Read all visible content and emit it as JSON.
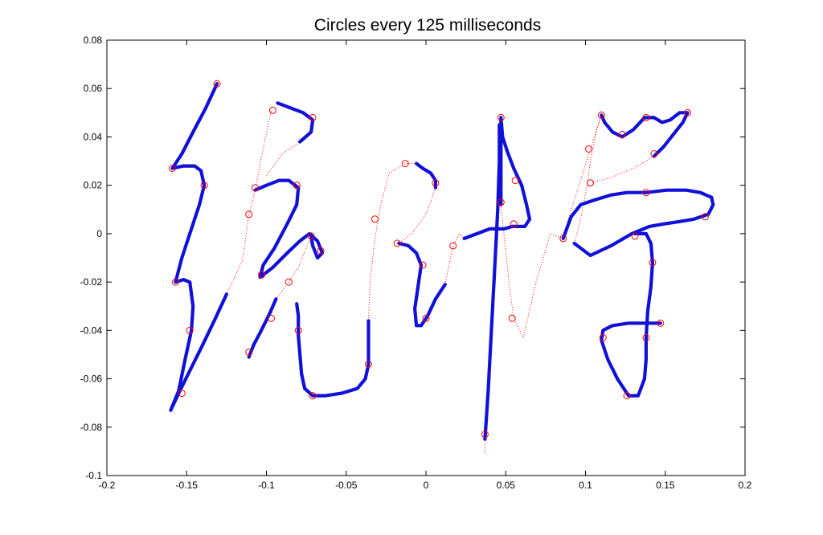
{
  "chart_data": {
    "type": "scatter",
    "title": "Circles every 125 milliseconds",
    "xlabel": "",
    "ylabel": "",
    "xlim": [
      -0.2,
      0.2
    ],
    "ylim": [
      -0.1,
      0.08
    ],
    "x_ticks": [
      -0.2,
      -0.15,
      -0.1,
      -0.05,
      0,
      0.05,
      0.1,
      0.15,
      0.2
    ],
    "x_tick_labels": [
      "-0.2",
      "-0.15",
      "-0.1",
      "-0.05",
      "0",
      "0.05",
      "0.1",
      "0.15",
      "0.2"
    ],
    "y_ticks": [
      0.08,
      0.06,
      0.04,
      0.02,
      0,
      -0.02,
      -0.04,
      -0.06,
      -0.08,
      -0.1
    ],
    "y_tick_labels": [
      "0.08",
      "0.06",
      "0.04",
      "0.02",
      "0",
      "-0.02",
      "-0.04",
      "-0.06",
      "-0.08",
      "-0.1"
    ],
    "grid": false,
    "colors": {
      "pen_down": "#1010d8",
      "pen_up": "#ff0000",
      "circles": "#ff0000"
    },
    "strokes": [
      [
        [
          -0.131,
          0.062
        ],
        [
          -0.138,
          0.052
        ],
        [
          -0.146,
          0.042
        ],
        [
          -0.153,
          0.033
        ],
        [
          -0.159,
          0.027
        ],
        [
          -0.152,
          0.028
        ],
        [
          -0.145,
          0.028
        ],
        [
          -0.141,
          0.026
        ],
        [
          -0.139,
          0.02
        ],
        [
          -0.142,
          0.012
        ],
        [
          -0.148,
          0.0
        ],
        [
          -0.153,
          -0.01
        ],
        [
          -0.157,
          -0.02
        ],
        [
          -0.152,
          -0.019
        ],
        [
          -0.148,
          -0.02
        ],
        [
          -0.146,
          -0.03
        ],
        [
          -0.147,
          -0.04
        ],
        [
          -0.151,
          -0.052
        ],
        [
          -0.155,
          -0.065
        ],
        [
          -0.16,
          -0.073
        ],
        [
          -0.155,
          -0.066
        ],
        [
          -0.149,
          -0.058
        ],
        [
          -0.14,
          -0.046
        ],
        [
          -0.132,
          -0.035
        ],
        [
          -0.125,
          -0.025
        ]
      ],
      [
        [
          -0.093,
          0.054
        ],
        [
          -0.085,
          0.052
        ],
        [
          -0.077,
          0.05
        ],
        [
          -0.071,
          0.047
        ],
        [
          -0.072,
          0.042
        ],
        [
          -0.079,
          0.038
        ]
      ],
      [
        [
          -0.107,
          0.018
        ],
        [
          -0.1,
          0.02
        ],
        [
          -0.092,
          0.022
        ],
        [
          -0.086,
          0.022
        ],
        [
          -0.08,
          0.019
        ],
        [
          -0.081,
          0.012
        ],
        [
          -0.087,
          0.004
        ],
        [
          -0.095,
          -0.006
        ],
        [
          -0.102,
          -0.013
        ],
        [
          -0.104,
          -0.018
        ],
        [
          -0.096,
          -0.014
        ],
        [
          -0.087,
          -0.008
        ],
        [
          -0.079,
          -0.003
        ],
        [
          -0.073,
          0.0
        ],
        [
          -0.068,
          -0.003
        ],
        [
          -0.065,
          -0.008
        ],
        [
          -0.068,
          -0.01
        ],
        [
          -0.071,
          -0.005
        ],
        [
          -0.072,
          -0.001
        ]
      ],
      [
        [
          -0.094,
          -0.027
        ],
        [
          -0.098,
          -0.033
        ],
        [
          -0.104,
          -0.041
        ],
        [
          -0.108,
          -0.046
        ],
        [
          -0.111,
          -0.051
        ]
      ],
      [
        [
          -0.081,
          -0.029
        ],
        [
          -0.08,
          -0.034
        ],
        [
          -0.08,
          -0.042
        ],
        [
          -0.079,
          -0.05
        ],
        [
          -0.078,
          -0.058
        ],
        [
          -0.076,
          -0.064
        ],
        [
          -0.071,
          -0.067
        ],
        [
          -0.063,
          -0.067
        ],
        [
          -0.053,
          -0.066
        ],
        [
          -0.043,
          -0.064
        ],
        [
          -0.038,
          -0.06
        ],
        [
          -0.036,
          -0.054
        ],
        [
          -0.036,
          -0.045
        ],
        [
          -0.036,
          -0.036
        ]
      ],
      [
        [
          -0.006,
          0.029
        ],
        [
          -0.002,
          0.027
        ],
        [
          0.003,
          0.025
        ],
        [
          0.006,
          0.022
        ],
        [
          0.006,
          0.019
        ]
      ],
      [
        [
          -0.017,
          -0.004
        ],
        [
          -0.011,
          -0.005
        ],
        [
          -0.006,
          -0.008
        ],
        [
          -0.003,
          -0.013
        ],
        [
          -0.005,
          -0.022
        ],
        [
          -0.007,
          -0.031
        ],
        [
          -0.006,
          -0.038
        ],
        [
          -0.003,
          -0.038
        ],
        [
          0.001,
          -0.034
        ],
        [
          0.006,
          -0.027
        ],
        [
          0.012,
          -0.021
        ]
      ],
      [
        [
          0.024,
          -0.002
        ],
        [
          0.032,
          0.0
        ],
        [
          0.04,
          0.002
        ],
        [
          0.049,
          0.002
        ],
        [
          0.054,
          0.003
        ],
        [
          0.058,
          0.003
        ],
        [
          0.062,
          0.003
        ],
        [
          0.065,
          0.006
        ],
        [
          0.063,
          0.012
        ],
        [
          0.06,
          0.02
        ],
        [
          0.055,
          0.027
        ],
        [
          0.051,
          0.034
        ],
        [
          0.048,
          0.04
        ],
        [
          0.047,
          0.048
        ],
        [
          0.047,
          0.03
        ],
        [
          0.047,
          0.012
        ]
      ],
      [
        [
          0.046,
          0.045
        ],
        [
          0.046,
          0.03
        ],
        [
          0.045,
          0.01
        ],
        [
          0.043,
          -0.015
        ],
        [
          0.041,
          -0.04
        ],
        [
          0.039,
          -0.065
        ],
        [
          0.037,
          -0.085
        ]
      ],
      [
        [
          0.086,
          -0.002
        ],
        [
          0.091,
          0.007
        ],
        [
          0.097,
          0.012
        ],
        [
          0.106,
          0.014
        ],
        [
          0.116,
          0.016
        ],
        [
          0.126,
          0.017
        ],
        [
          0.138,
          0.017
        ],
        [
          0.151,
          0.018
        ],
        [
          0.163,
          0.018
        ],
        [
          0.172,
          0.017
        ],
        [
          0.179,
          0.015
        ],
        [
          0.18,
          0.012
        ],
        [
          0.177,
          0.008
        ],
        [
          0.168,
          0.006
        ],
        [
          0.159,
          0.005
        ],
        [
          0.149,
          0.004
        ],
        [
          0.14,
          0.003
        ],
        [
          0.129,
          0.0
        ],
        [
          0.116,
          -0.005
        ],
        [
          0.103,
          -0.009
        ],
        [
          0.093,
          -0.004
        ]
      ],
      [
        [
          0.11,
          0.049
        ],
        [
          0.112,
          0.046
        ],
        [
          0.117,
          0.042
        ],
        [
          0.123,
          0.04
        ],
        [
          0.13,
          0.043
        ],
        [
          0.137,
          0.048
        ],
        [
          0.143,
          0.048
        ],
        [
          0.148,
          0.046
        ],
        [
          0.153,
          0.047
        ],
        [
          0.159,
          0.05
        ],
        [
          0.164,
          0.05
        ],
        [
          0.161,
          0.046
        ],
        [
          0.155,
          0.041
        ],
        [
          0.149,
          0.036
        ],
        [
          0.143,
          0.032
        ]
      ],
      [
        [
          0.131,
          0.0
        ],
        [
          0.138,
          0.0
        ],
        [
          0.141,
          -0.004
        ],
        [
          0.142,
          -0.012
        ],
        [
          0.141,
          -0.022
        ],
        [
          0.139,
          -0.032
        ],
        [
          0.138,
          -0.043
        ],
        [
          0.138,
          -0.052
        ],
        [
          0.137,
          -0.06
        ],
        [
          0.133,
          -0.067
        ],
        [
          0.127,
          -0.067
        ],
        [
          0.12,
          -0.06
        ],
        [
          0.114,
          -0.052
        ],
        [
          0.11,
          -0.044
        ],
        [
          0.111,
          -0.04
        ],
        [
          0.117,
          -0.038
        ],
        [
          0.127,
          -0.037
        ],
        [
          0.137,
          -0.037
        ],
        [
          0.147,
          -0.037
        ]
      ]
    ],
    "pen_up": [
      [
        [
          -0.125,
          -0.025
        ],
        [
          -0.115,
          -0.011
        ],
        [
          -0.111,
          0.008
        ],
        [
          -0.107,
          0.018
        ]
      ],
      [
        [
          -0.107,
          0.018
        ],
        [
          -0.103,
          0.032
        ],
        [
          -0.097,
          0.051
        ]
      ],
      [
        [
          -0.1,
          0.024
        ],
        [
          -0.09,
          0.033
        ],
        [
          -0.079,
          0.038
        ]
      ],
      [
        [
          -0.072,
          -0.001
        ],
        [
          -0.08,
          -0.014
        ],
        [
          -0.086,
          -0.02
        ],
        [
          -0.094,
          -0.027
        ]
      ],
      [
        [
          -0.036,
          -0.036
        ],
        [
          -0.035,
          -0.02
        ],
        [
          -0.032,
          -0.002
        ],
        [
          -0.028,
          0.013
        ],
        [
          -0.023,
          0.025
        ],
        [
          -0.013,
          0.029
        ],
        [
          -0.006,
          0.029
        ]
      ],
      [
        [
          0.006,
          0.019
        ],
        [
          0.0,
          0.008
        ],
        [
          -0.009,
          0.0
        ],
        [
          -0.017,
          -0.004
        ]
      ],
      [
        [
          0.012,
          -0.021
        ],
        [
          0.017,
          -0.005
        ],
        [
          0.021,
          0.0
        ],
        [
          0.024,
          -0.002
        ]
      ],
      [
        [
          0.037,
          -0.085
        ],
        [
          0.037,
          -0.091
        ]
      ],
      [
        [
          0.047,
          0.012
        ],
        [
          0.052,
          -0.02
        ],
        [
          0.055,
          -0.035
        ],
        [
          0.061,
          -0.043
        ]
      ],
      [
        [
          0.061,
          -0.043
        ],
        [
          0.069,
          -0.02
        ],
        [
          0.078,
          0.0
        ],
        [
          0.086,
          -0.002
        ]
      ],
      [
        [
          0.093,
          -0.004
        ],
        [
          0.097,
          0.006
        ],
        [
          0.101,
          0.02
        ],
        [
          0.103,
          0.03
        ],
        [
          0.107,
          0.043
        ],
        [
          0.11,
          0.049
        ]
      ],
      [
        [
          0.143,
          0.032
        ],
        [
          0.13,
          0.027
        ],
        [
          0.115,
          0.023
        ],
        [
          0.103,
          0.021
        ]
      ],
      [
        [
          0.086,
          -0.002
        ],
        [
          0.091,
          0.01
        ],
        [
          0.097,
          0.022
        ],
        [
          0.103,
          0.035
        ],
        [
          0.11,
          0.049
        ]
      ]
    ],
    "circles": [
      [
        -0.131,
        0.062
      ],
      [
        -0.159,
        0.027
      ],
      [
        -0.139,
        0.02
      ],
      [
        -0.157,
        -0.02
      ],
      [
        -0.148,
        -0.04
      ],
      [
        -0.153,
        -0.066
      ],
      [
        -0.096,
        0.051
      ],
      [
        -0.071,
        0.048
      ],
      [
        -0.107,
        0.019
      ],
      [
        -0.081,
        0.02
      ],
      [
        -0.111,
        0.008
      ],
      [
        -0.072,
        -0.001
      ],
      [
        -0.066,
        -0.007
      ],
      [
        -0.103,
        -0.017
      ],
      [
        -0.086,
        -0.02
      ],
      [
        -0.097,
        -0.035
      ],
      [
        -0.08,
        -0.04
      ],
      [
        -0.111,
        -0.049
      ],
      [
        -0.071,
        -0.067
      ],
      [
        -0.036,
        -0.054
      ],
      [
        -0.013,
        0.029
      ],
      [
        0.006,
        0.021
      ],
      [
        -0.032,
        0.006
      ],
      [
        -0.018,
        -0.004
      ],
      [
        -0.002,
        -0.013
      ],
      [
        0.0,
        -0.035
      ],
      [
        0.017,
        -0.005
      ],
      [
        0.047,
        0.048
      ],
      [
        0.047,
        0.013
      ],
      [
        0.056,
        0.022
      ],
      [
        0.055,
        0.004
      ],
      [
        0.054,
        -0.035
      ],
      [
        0.037,
        -0.083
      ],
      [
        0.11,
        0.049
      ],
      [
        0.102,
        0.035
      ],
      [
        0.103,
        0.021
      ],
      [
        0.086,
        -0.002
      ],
      [
        0.123,
        0.041
      ],
      [
        0.138,
        0.048
      ],
      [
        0.164,
        0.05
      ],
      [
        0.143,
        0.033
      ],
      [
        0.138,
        0.017
      ],
      [
        0.175,
        0.007
      ],
      [
        0.131,
        -0.001
      ],
      [
        0.142,
        -0.012
      ],
      [
        0.111,
        -0.043
      ],
      [
        0.138,
        -0.043
      ],
      [
        0.147,
        -0.037
      ],
      [
        0.126,
        -0.067
      ]
    ]
  }
}
